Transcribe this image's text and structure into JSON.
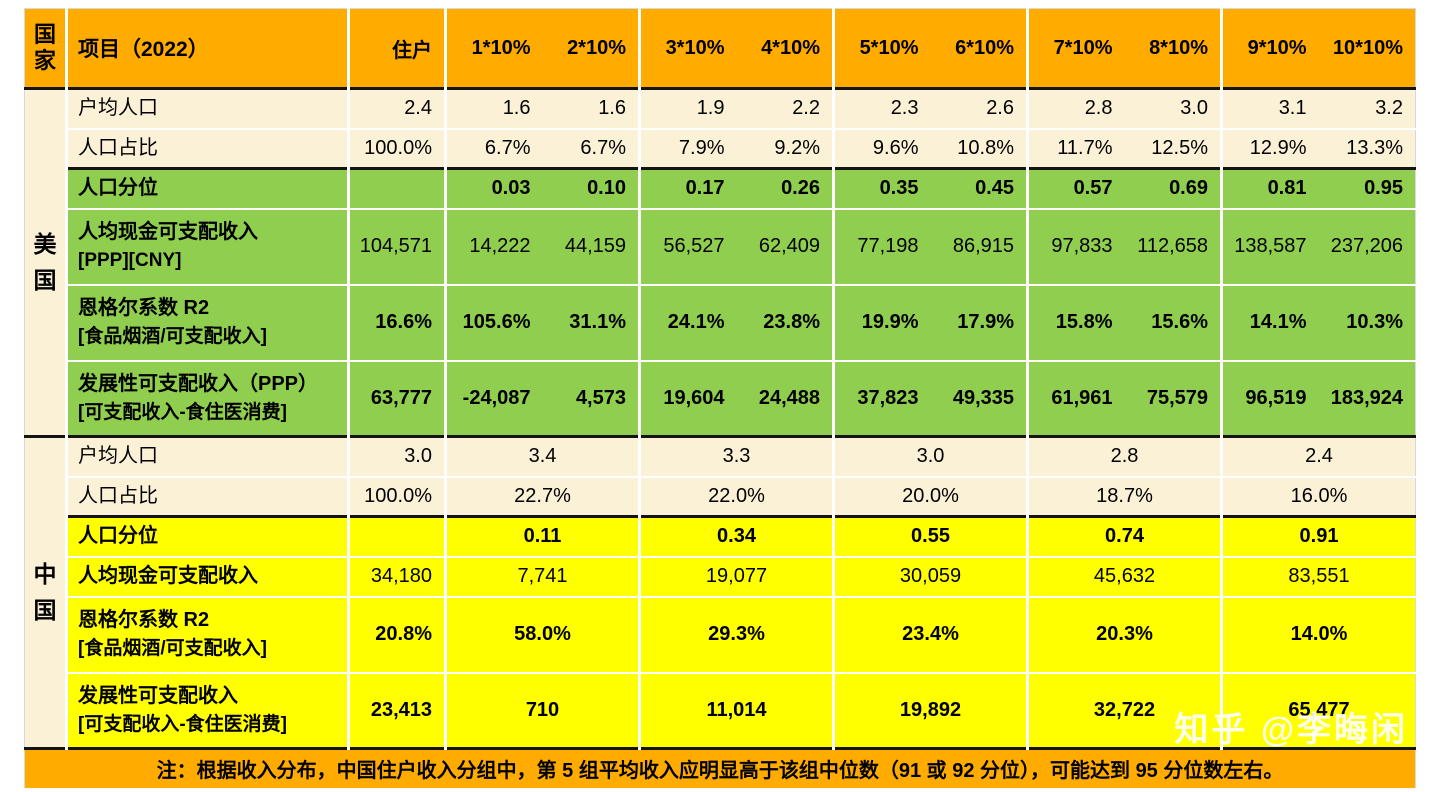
{
  "colors": {
    "orange": "#FFAB00",
    "cream": "#FBF1D6",
    "green": "#8FCE4E",
    "yellow": "#FFFF00",
    "grid_white": "#FFFFFF",
    "section_line": "#141414",
    "text": "#000000"
  },
  "watermark": "知乎 @李晦闲",
  "footnote": "注：根据收入分布，中国住户收入分组中，第 5 组平均收入应明显高于该组中位数（91 或 92 分位），可能达到 95 分位数左右。",
  "chart_data": {
    "type": "table",
    "header": {
      "country": "国家",
      "item": "项目（2022）",
      "household": "住户",
      "deciles": [
        "1*10%",
        "2*10%",
        "3*10%",
        "4*10%",
        "5*10%",
        "6*10%",
        "7*10%",
        "8*10%",
        "9*10%",
        "10*10%"
      ]
    },
    "sections": [
      {
        "country": "美国",
        "group_span": 1,
        "rows": [
          {
            "label": "户均人口",
            "bg": "cream",
            "dark": true,
            "values": [
              "2.4",
              "1.6",
              "1.6",
              "1.9",
              "2.2",
              "2.3",
              "2.6",
              "2.8",
              "3.0",
              "3.1",
              "3.2"
            ]
          },
          {
            "label": "人口占比",
            "bg": "cream",
            "values": [
              "100.0%",
              "6.7%",
              "6.7%",
              "7.9%",
              "9.2%",
              "9.6%",
              "10.8%",
              "11.7%",
              "12.5%",
              "12.9%",
              "13.3%"
            ]
          },
          {
            "label": "人口分位",
            "bg": "green",
            "labelBold": true,
            "valueBold": true,
            "dark": true,
            "values": [
              "",
              "0.03",
              "0.10",
              "0.17",
              "0.26",
              "0.35",
              "0.45",
              "0.57",
              "0.69",
              "0.81",
              "0.95"
            ]
          },
          {
            "label": "人均现金可支配收入",
            "sublabel": "[PPP][CNY]",
            "bg": "green",
            "labelBold": true,
            "values": [
              "104,571",
              "14,222",
              "44,159",
              "56,527",
              "62,409",
              "77,198",
              "86,915",
              "97,833",
              "112,658",
              "138,587",
              "237,206"
            ]
          },
          {
            "label": "恩格尔系数 R2",
            "sublabel": "[食品烟酒/可支配收入]",
            "bg": "green",
            "labelBold": true,
            "valueBold": true,
            "values": [
              "16.6%",
              "105.6%",
              "31.1%",
              "24.1%",
              "23.8%",
              "19.9%",
              "17.9%",
              "15.8%",
              "15.6%",
              "14.1%",
              "10.3%"
            ]
          },
          {
            "label": "发展性可支配收入（PPP）",
            "sublabel": "[可支配收入-食住医消费]",
            "bg": "green",
            "labelBold": true,
            "valueBold": true,
            "values": [
              "63,777",
              "-24,087",
              "4,573",
              "19,604",
              "24,488",
              "37,823",
              "49,335",
              "61,961",
              "75,579",
              "96,519",
              "183,924"
            ]
          }
        ]
      },
      {
        "country": "中国",
        "group_span": 2,
        "rows": [
          {
            "label": "户均人口",
            "bg": "cream",
            "dark": true,
            "values": [
              "3.0",
              "3.4",
              "3.3",
              "3.0",
              "2.8",
              "2.4"
            ]
          },
          {
            "label": "人口占比",
            "bg": "cream",
            "values": [
              "100.0%",
              "22.7%",
              "22.0%",
              "20.0%",
              "18.7%",
              "16.0%"
            ]
          },
          {
            "label": "人口分位",
            "bg": "yellow",
            "labelBold": true,
            "valueBold": true,
            "dark": true,
            "values": [
              "",
              "0.11",
              "0.34",
              "0.55",
              "0.74",
              "0.91"
            ]
          },
          {
            "label": "人均现金可支配收入",
            "bg": "yellow",
            "labelBold": true,
            "values": [
              "34,180",
              "7,741",
              "19,077",
              "30,059",
              "45,632",
              "83,551"
            ]
          },
          {
            "label": "恩格尔系数 R2",
            "sublabel": "[食品烟酒/可支配收入]",
            "bg": "yellow",
            "labelBold": true,
            "valueBold": true,
            "values": [
              "20.8%",
              "58.0%",
              "29.3%",
              "23.4%",
              "20.3%",
              "14.0%"
            ]
          },
          {
            "label": "发展性可支配收入",
            "sublabel": "[可支配收入-食住医消费]",
            "bg": "yellow",
            "labelBold": true,
            "valueBold": true,
            "values": [
              "23,413",
              "710",
              "11,014",
              "19,892",
              "32,722",
              "65,477"
            ]
          }
        ]
      }
    ]
  }
}
